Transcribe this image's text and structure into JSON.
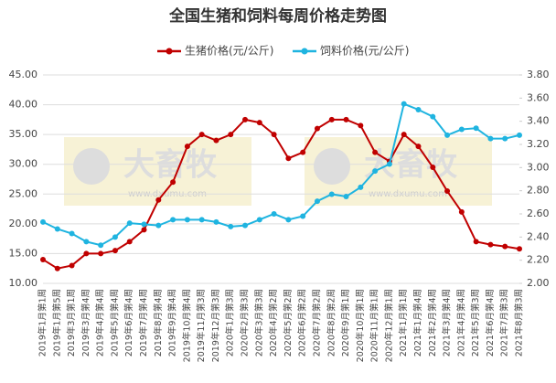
{
  "chart_data": {
    "type": "line",
    "title": "全国生猪和饲料每周价格走势图",
    "watermark": {
      "text": "大畜牧",
      "url": "www.dxumu.com"
    },
    "categories": [
      "2019年1月第1周",
      "2019年1月第5周",
      "2019年3月第1周",
      "2019年3月第4周",
      "2019年4月第4周",
      "2019年5月第4周",
      "2019年6月第4周",
      "2019年7月第4周",
      "2019年8月第4周",
      "2019年9月第4周",
      "2019年10月第4周",
      "2019年11月第3周",
      "2019年12月第3周",
      "2020年1月第3周",
      "2020年2月第3周",
      "2020年3月第3周",
      "2020年4月第2周",
      "2020年5月第2周",
      "2020年6月第2周",
      "2020年7月第2周",
      "2020年8月第2周",
      "2020年9月第1周",
      "2020年10月第1周",
      "2020年11月第1周",
      "2020年12月第1周",
      "2021年1月第1周",
      "2021年1月第4周",
      "2021年2月第4周",
      "2021年3月第4周",
      "2021年4月第4周",
      "2021年5月第3周",
      "2021年6月第4周",
      "2021年7月第3周",
      "2021年8月第3周"
    ],
    "series": [
      {
        "name": "生猪价格(元/公斤)",
        "color": "#c00000",
        "axis": "y",
        "values": [
          14,
          12.5,
          13,
          15,
          15,
          15.5,
          17,
          19,
          24,
          27,
          33,
          35,
          34,
          35,
          37.5,
          37,
          35,
          31,
          32,
          36,
          37.5,
          37.5,
          36.5,
          32,
          30.5,
          35,
          33,
          29.5,
          25.5,
          22,
          17,
          16.5,
          16.2,
          15.8
        ]
      },
      {
        "name": "饲料价格(元/公斤)",
        "color": "#1fb4e0",
        "axis": "y2",
        "values": [
          2.53,
          2.47,
          2.43,
          2.36,
          2.33,
          2.4,
          2.52,
          2.51,
          2.5,
          2.55,
          2.55,
          2.55,
          2.53,
          2.49,
          2.5,
          2.55,
          2.6,
          2.55,
          2.58,
          2.71,
          2.77,
          2.75,
          2.83,
          2.97,
          3.03,
          3.55,
          3.5,
          3.44,
          3.28,
          3.33,
          3.34,
          3.25,
          3.25,
          3.28
        ]
      }
    ],
    "ylim": [
      10,
      45
    ],
    "yticks": [
      {
        "value": 10,
        "label": "10.00"
      },
      {
        "value": 15,
        "label": "15.00"
      },
      {
        "value": 20,
        "label": "20.00"
      },
      {
        "value": 25,
        "label": "25.00"
      },
      {
        "value": 30,
        "label": "30.00"
      },
      {
        "value": 35,
        "label": "35.00"
      },
      {
        "value": 40,
        "label": "40.00"
      },
      {
        "value": 45,
        "label": "45.00"
      }
    ],
    "y2lim": [
      2.0,
      3.8
    ],
    "y2ticks": [
      {
        "value": 2.0,
        "label": "2.00"
      },
      {
        "value": 2.2,
        "label": "2.20"
      },
      {
        "value": 2.4,
        "label": "2.40"
      },
      {
        "value": 2.6,
        "label": "2.60"
      },
      {
        "value": 2.8,
        "label": "2.80"
      },
      {
        "value": 3.0,
        "label": "3.00"
      },
      {
        "value": 3.2,
        "label": "3.20"
      },
      {
        "value": 3.4,
        "label": "3.40"
      },
      {
        "value": 3.6,
        "label": "3.60"
      },
      {
        "value": 3.8,
        "label": "3.80"
      }
    ],
    "grid": true
  }
}
